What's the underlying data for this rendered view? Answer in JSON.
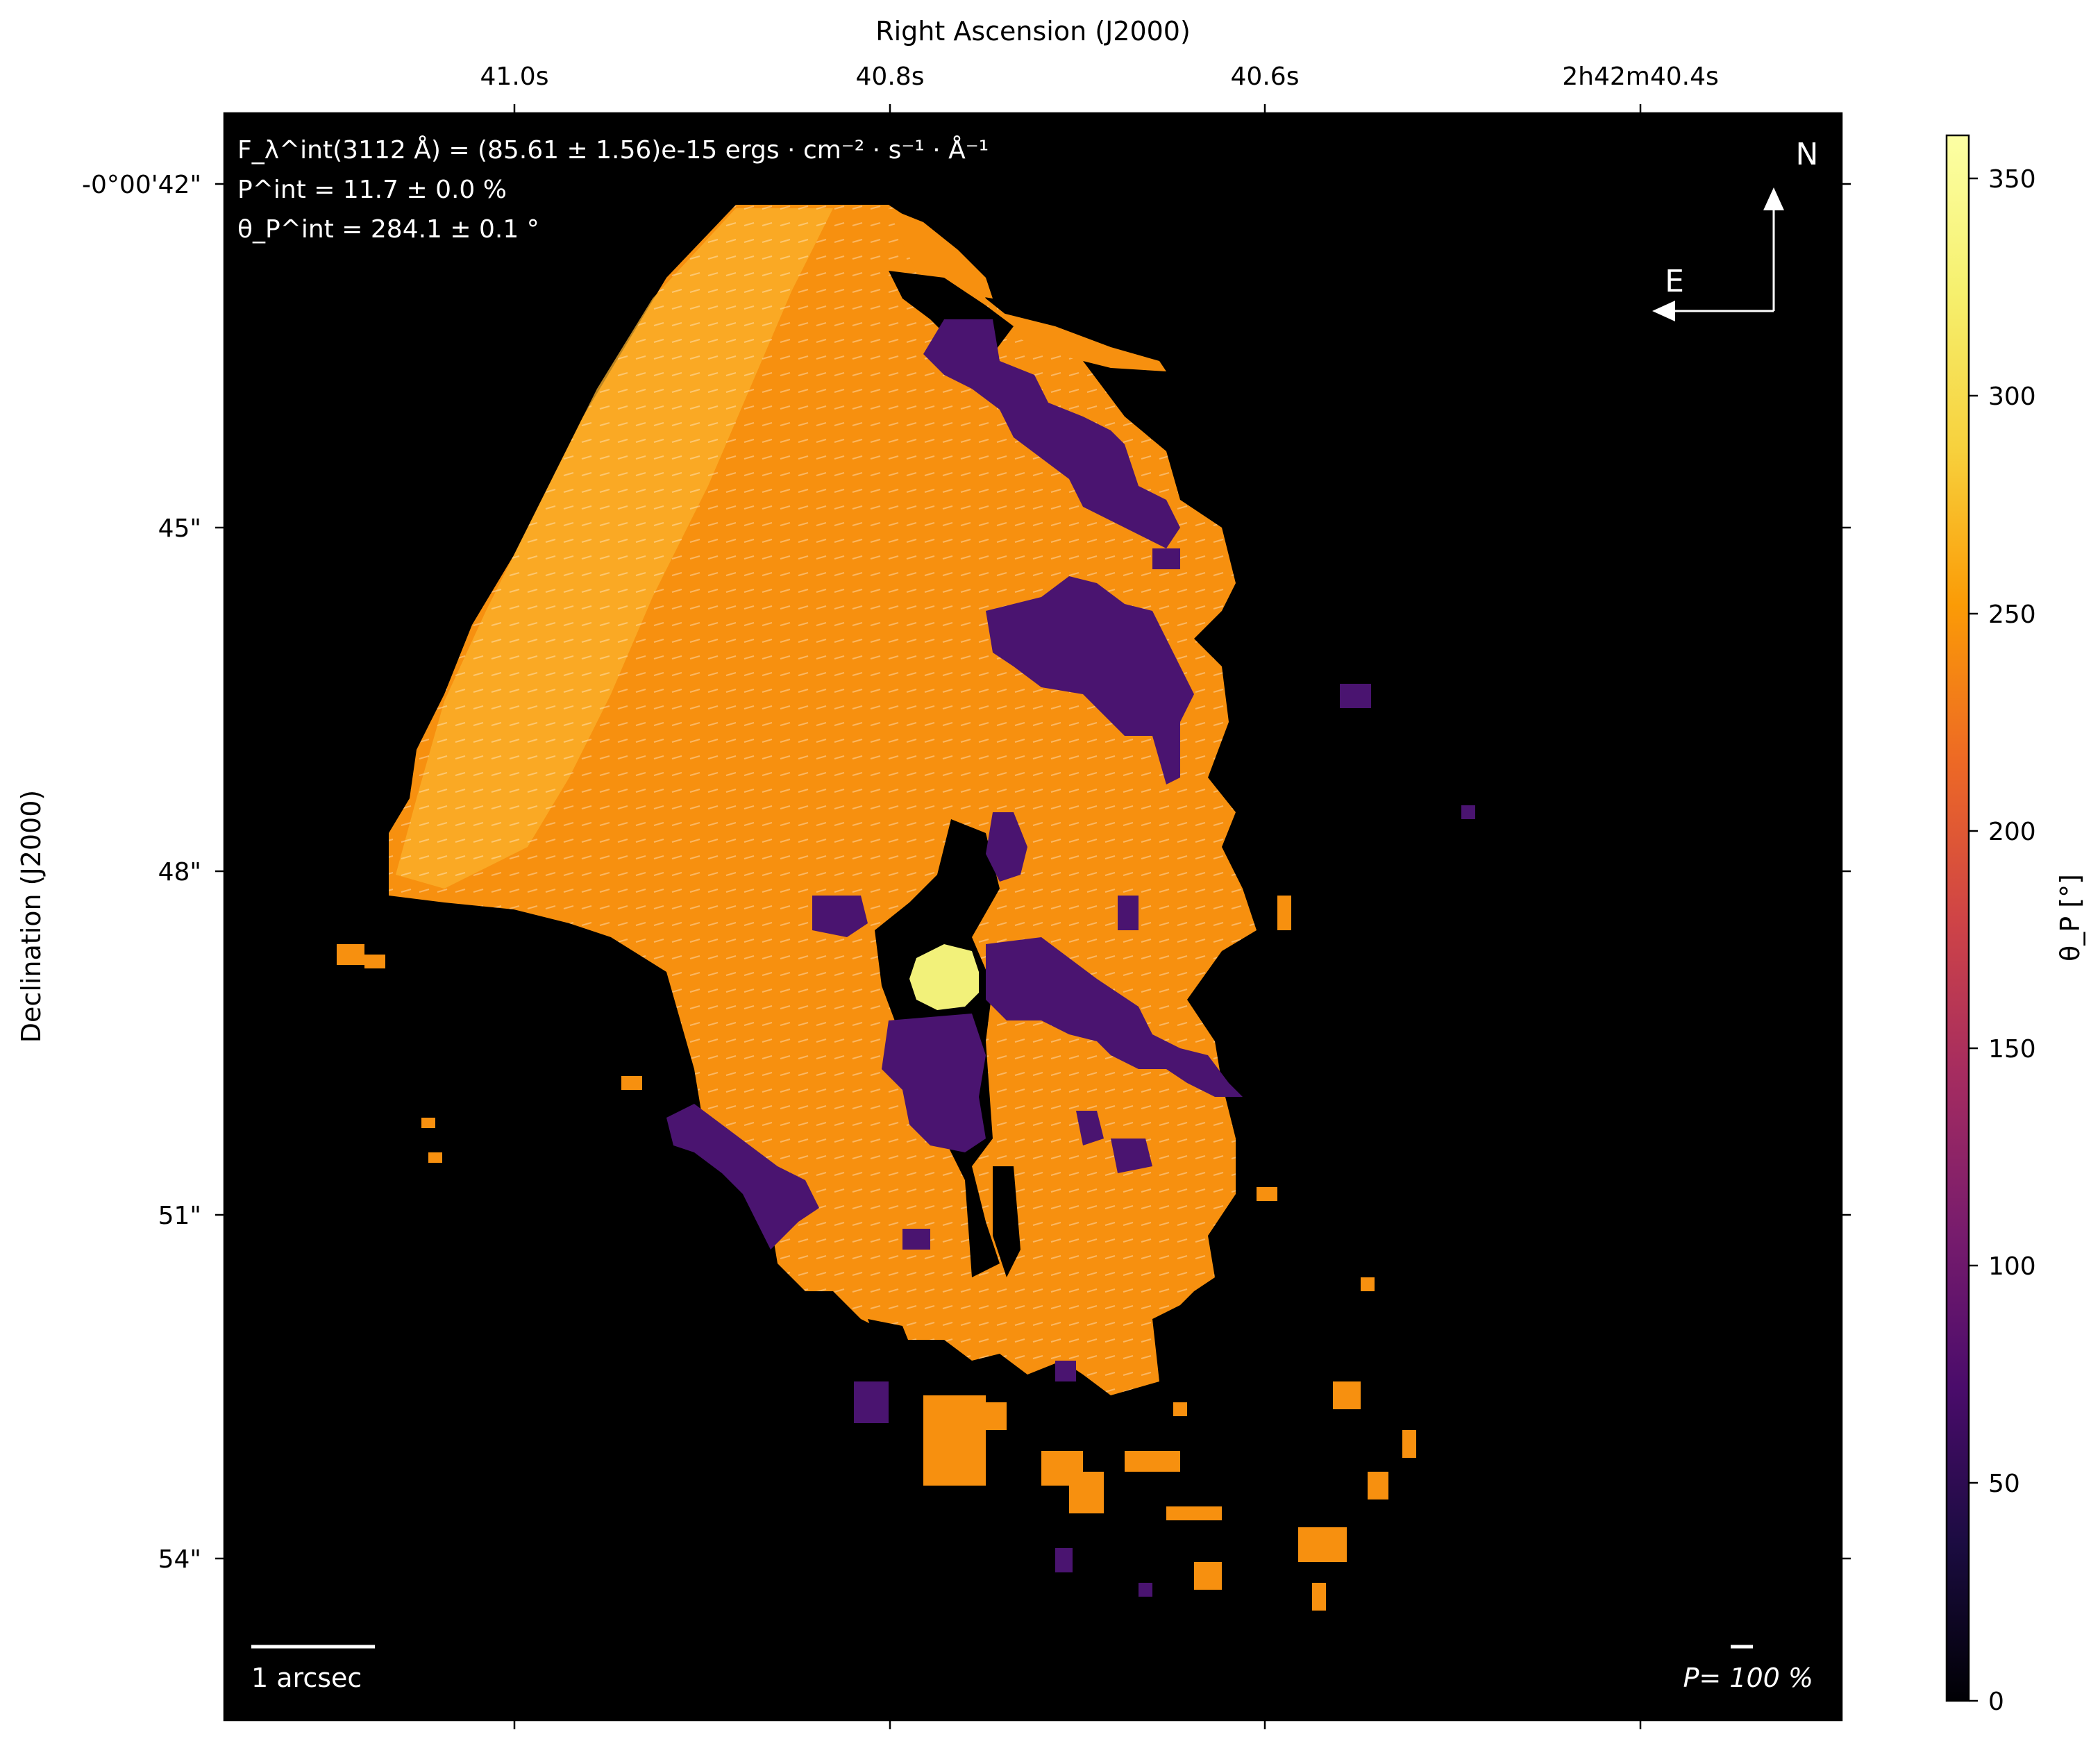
{
  "chart_data": {
    "type": "heatmap",
    "title": "",
    "xlabel": "Right Ascension (J2000)",
    "ylabel": "Declination (J2000)",
    "x_ticks": [
      "41.0s",
      "40.8s",
      "40.6s",
      "2h42m40.4s"
    ],
    "y_ticks": [
      "-0°00'42\"",
      "45\"",
      "48\"",
      "51\"",
      "54\""
    ],
    "colorbar": {
      "label": "θ_P [°]",
      "range": [
        0,
        360
      ],
      "ticks": [
        "0",
        "50",
        "100",
        "150",
        "200",
        "250",
        "300",
        "350"
      ],
      "colormap": "inferno"
    },
    "integrated": {
      "flux": "F_λ^int(3112 Å) = (85.61 ± 1.56)e-15 ergs · cm⁻² · s⁻¹ · Å⁻¹",
      "pol_degree": "P^int = 11.7 ± 0.0 %",
      "pol_angle": "θ_P^int = 284.1 ± 0.1 °"
    },
    "compass": {
      "north": "N",
      "east": "E"
    },
    "scale_bar": {
      "label": "1 arcsec"
    },
    "pol_scale": {
      "label": "P= 100 %"
    },
    "value_regions": [
      {
        "region": "main extended emission",
        "theta_deg": 290
      },
      {
        "region": "north-east wing",
        "theta_deg": 310
      },
      {
        "region": "purple patches",
        "theta_deg": 70
      },
      {
        "region": "nucleus",
        "theta_deg": 355
      }
    ],
    "grid": false
  },
  "colors": {
    "background": "#000000",
    "orange_main": "#f7900f",
    "orange_light": "#fbb12c",
    "purple": "#4a1470",
    "nucleus": "#f2f17a"
  }
}
